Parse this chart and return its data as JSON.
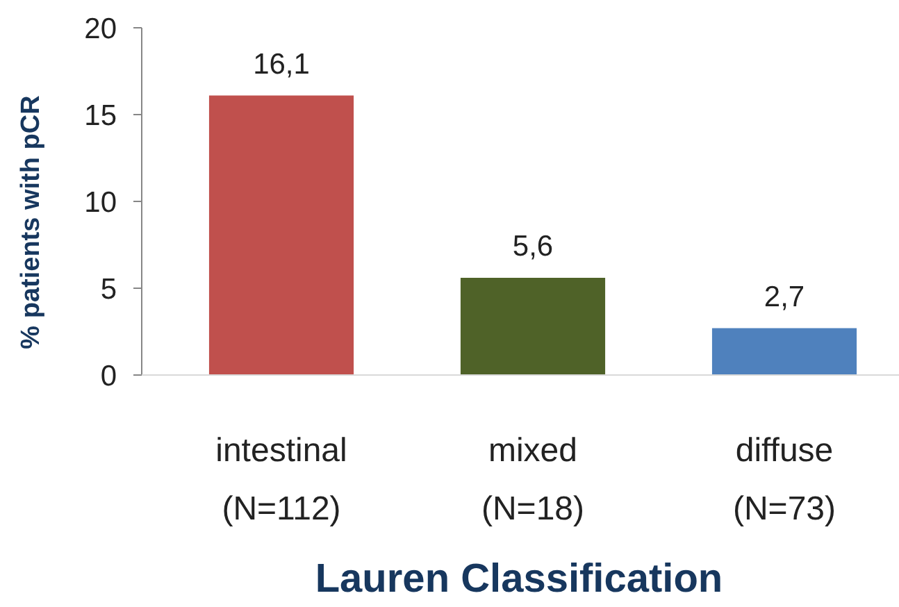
{
  "chart_data": {
    "type": "bar",
    "xlabel": "Lauren Classification",
    "ylabel": "% patients with pCR",
    "categories": [
      "intestinal\n(N=112)",
      "mixed\n(N=18)",
      "diffuse\n(N=73)"
    ],
    "values": [
      16.1,
      5.6,
      2.7
    ],
    "colors": [
      "#c0504d",
      "#4f6228",
      "#4f81bd"
    ],
    "value_labels": [
      "16,1",
      "5,6",
      "2,7"
    ],
    "ylim": [
      0,
      20
    ],
    "yticks": [
      0,
      5,
      10,
      15,
      20
    ]
  }
}
